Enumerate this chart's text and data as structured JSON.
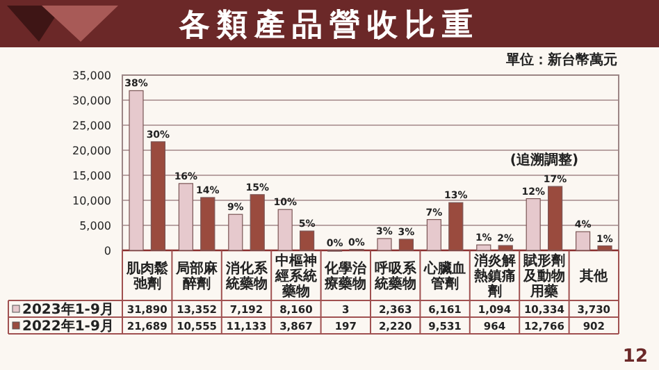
{
  "chart_data": {
    "type": "bar",
    "title": "各類產品營收比重",
    "subtitle": "單位：新台幣萬元",
    "categories": [
      "肌肉鬆弛劑",
      "局部麻醉劑",
      "消化系統藥物",
      "中樞神經系統藥物",
      "化學治療藥物",
      "呼吸系統藥物",
      "心臟血管劑",
      "消炎解熱鎮痛劑",
      "賦形劑及動物用藥",
      "其他"
    ],
    "series": [
      {
        "name": "2023年1-9月",
        "color": "#e6c9cd",
        "values": [
          31890,
          13352,
          7192,
          8160,
          3,
          2363,
          6161,
          1094,
          10334,
          3730
        ],
        "value_labels": [
          "31,890",
          "13,352",
          "7,192",
          "8,160",
          "3",
          "2,363",
          "6,161",
          "1,094",
          "10,334",
          "3,730"
        ]
      },
      {
        "name": "2022年1-9月",
        "color": "#9a4b3e",
        "values": [
          21689,
          10555,
          11133,
          3867,
          197,
          2220,
          9531,
          964,
          12766,
          902
        ],
        "value_labels": [
          "21,689",
          "10,555",
          "11,133",
          "3,867",
          "197",
          "2,220",
          "9,531",
          "964",
          "12,766",
          "902"
        ]
      }
    ],
    "ylim": [
      0,
      35000
    ],
    "yticks": [
      0,
      {
        "value": 5000,
        "label": "5,000"
      },
      {
        "value": 10000,
        "label": "10,000"
      },
      {
        "value": 15000,
        "label": "15,000"
      },
      {
        "value": 20000,
        "label": "20,000"
      },
      {
        "value": 25000,
        "label": "25,000"
      },
      {
        "value": 30000,
        "label": "30,000"
      },
      {
        "value": 35000,
        "label": "35,000"
      }
    ],
    "grid": "y",
    "legend": "bottom left",
    "annotations": [
      "(追溯調整)",
      "12",
      {
        "text": "38%",
        "x": "肌肉鬆弛劑",
        "y": 31890
      },
      {
        "text": "30%",
        "x": "肌肉鬆弛劑",
        "y": 21689
      },
      {
        "text": "16%",
        "x": "局部麻醉劑",
        "y": 13352
      },
      {
        "text": "14%",
        "x": "局部麻醉劑",
        "y": 10555
      },
      {
        "text": "9%",
        "x": "消化系統藥物",
        "y": 7192
      },
      {
        "text": "15%",
        "x": "消化系統藥物",
        "y": 11133
      },
      {
        "text": "10%",
        "x": "中樞神經系統藥物",
        "y": 8160
      },
      {
        "text": "5%",
        "x": "中樞神經系統藥物",
        "y": 3867
      },
      {
        "text": "0%",
        "x": "化學治療藥物",
        "y": 3
      },
      {
        "text": "0%",
        "x": "化學治療藥物",
        "y": 197
      },
      {
        "text": "3%",
        "x": "呼吸系統藥物",
        "y": 2363
      },
      {
        "text": "3%",
        "x": "呼吸系統藥物",
        "y": 2220
      },
      {
        "text": "7%",
        "x": "心臟血管劑",
        "y": 6161
      },
      {
        "text": "13%",
        "x": "心臟血管劑",
        "y": 9531
      },
      {
        "text": "1%",
        "x": "消炎解熱鎮痛劑",
        "y": 1094
      },
      {
        "text": "2%",
        "x": "消炎解熱鎮痛劑",
        "y": 964
      },
      {
        "text": "12%",
        "x": "賦形劑及動物用藥",
        "y": 10334
      },
      {
        "text": "17%",
        "x": "賦形劑及動物用藥",
        "y": 12766
      },
      {
        "text": "4%",
        "x": "其他",
        "y": 3730
      },
      {
        "text": "1%",
        "x": "其他",
        "y": 902
      }
    ]
  }
}
